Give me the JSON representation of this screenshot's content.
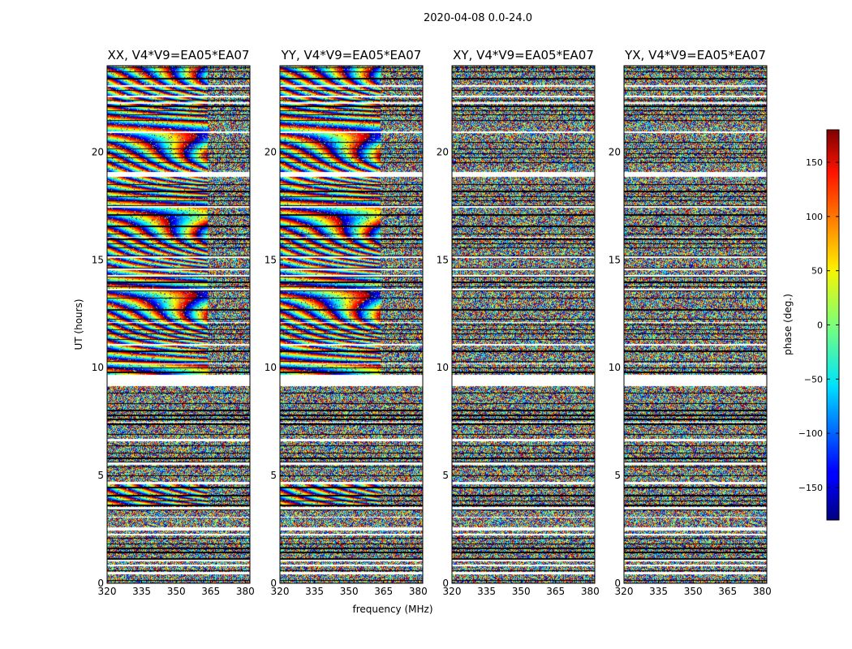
{
  "chart_data": {
    "type": "heatmap",
    "title": "2020-04-08 0.0-24.0",
    "xlabel": "frequency (MHz)",
    "ylabel": "UT (hours)",
    "xlim": [
      320,
      382
    ],
    "ylim": [
      0,
      24
    ],
    "xticks": [
      320,
      335,
      350,
      365,
      380
    ],
    "yticks": [
      0,
      5,
      10,
      15,
      20
    ],
    "colorbar": {
      "label": "phase (deg.)",
      "range": [
        -180,
        180
      ],
      "ticks": [
        -150,
        -100,
        -50,
        0,
        50,
        100,
        150
      ],
      "colormap": "jet"
    },
    "panels": [
      {
        "title": "XX, V4*V9=EA05*EA07",
        "pol": "XX",
        "coherent": true
      },
      {
        "title": "YY, V4*V9=EA05*EA07",
        "pol": "YY",
        "coherent": true
      },
      {
        "title": "XY, V4*V9=EA05*EA07",
        "pol": "XY",
        "coherent": false
      },
      {
        "title": "YX, V4*V9=EA05*EA07",
        "pol": "YX",
        "coherent": false
      }
    ],
    "flagged_gaps_ut": [
      [
        0.42,
        0.55
      ],
      [
        0.82,
        0.88
      ],
      [
        1.05,
        1.1
      ],
      [
        2.25,
        2.33
      ],
      [
        2.48,
        2.6
      ],
      [
        3.05,
        3.1
      ],
      [
        3.45,
        3.55
      ],
      [
        4.6,
        4.72
      ],
      [
        5.52,
        5.62
      ],
      [
        6.62,
        6.7
      ],
      [
        7.45,
        7.52
      ],
      [
        9.15,
        9.7
      ],
      [
        10.18,
        10.22
      ],
      [
        11.05,
        11.12
      ],
      [
        12.08,
        12.14
      ],
      [
        13.6,
        13.68
      ],
      [
        14.25,
        14.32
      ],
      [
        14.55,
        14.62
      ],
      [
        15.1,
        15.16
      ],
      [
        16.05,
        16.1
      ],
      [
        17.45,
        17.52
      ],
      [
        18.88,
        19.08
      ],
      [
        20.9,
        20.98
      ],
      [
        22.25,
        22.32
      ],
      [
        22.55,
        22.62
      ],
      [
        23.05,
        23.12
      ]
    ]
  }
}
